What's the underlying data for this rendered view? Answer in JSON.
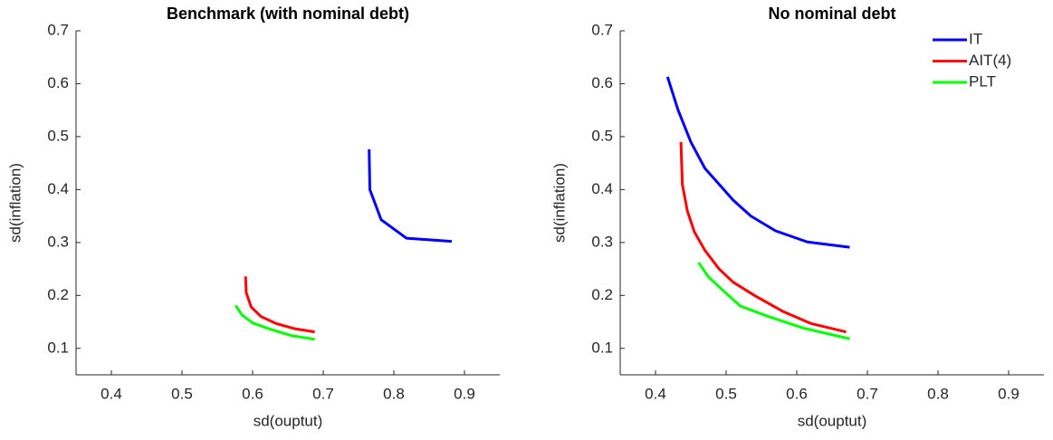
{
  "chart_data": [
    {
      "type": "line",
      "title": "Benchmark (with nominal debt)",
      "x_label": "sd(ouptut)",
      "y_label": "sd(inflation)",
      "xlim": [
        0.35,
        0.95
      ],
      "ylim": [
        0.05,
        0.7
      ],
      "xticks": [
        0.4,
        0.5,
        0.6,
        0.7,
        0.8,
        0.9
      ],
      "yticks": [
        0.1,
        0.2,
        0.3,
        0.4,
        0.5,
        0.6,
        0.7
      ],
      "series": [
        {
          "color": "#0000ff",
          "x": [
            0.765,
            0.766,
            0.782,
            0.818,
            0.882
          ],
          "values": [
            0.476,
            0.4,
            0.343,
            0.308,
            0.302
          ]
        },
        {
          "color": "#ff0000",
          "x": [
            0.59,
            0.591,
            0.598,
            0.612,
            0.633,
            0.66,
            0.688
          ],
          "values": [
            0.236,
            0.205,
            0.178,
            0.16,
            0.147,
            0.137,
            0.131
          ]
        },
        {
          "color": "#00ff00",
          "x": [
            0.576,
            0.585,
            0.6,
            0.625,
            0.655,
            0.688
          ],
          "values": [
            0.181,
            0.163,
            0.148,
            0.136,
            0.124,
            0.117
          ]
        }
      ]
    },
    {
      "type": "line",
      "title": "No nominal debt",
      "x_label": "sd(ouptut)",
      "y_label": "sd(inflation)",
      "xlim": [
        0.35,
        0.95
      ],
      "ylim": [
        0.05,
        0.7
      ],
      "xticks": [
        0.4,
        0.5,
        0.6,
        0.7,
        0.8,
        0.9
      ],
      "yticks": [
        0.1,
        0.2,
        0.3,
        0.4,
        0.5,
        0.6,
        0.7
      ],
      "legend": "northeast",
      "series": [
        {
          "name": "IT",
          "color": "#0000ff",
          "x": [
            0.417,
            0.432,
            0.45,
            0.47,
            0.49,
            0.51,
            0.535,
            0.57,
            0.615,
            0.675
          ],
          "values": [
            0.613,
            0.55,
            0.49,
            0.44,
            0.41,
            0.38,
            0.35,
            0.322,
            0.301,
            0.291
          ]
        },
        {
          "name": "AIT(4)",
          "color": "#ff0000",
          "x": [
            0.436,
            0.438,
            0.445,
            0.455,
            0.47,
            0.49,
            0.51,
            0.54,
            0.58,
            0.62,
            0.67
          ],
          "values": [
            0.49,
            0.41,
            0.36,
            0.32,
            0.285,
            0.25,
            0.225,
            0.2,
            0.17,
            0.147,
            0.131
          ]
        },
        {
          "name": "PLT",
          "color": "#00ff00",
          "x": [
            0.461,
            0.475,
            0.495,
            0.52,
            0.56,
            0.61,
            0.675
          ],
          "values": [
            0.262,
            0.235,
            0.21,
            0.18,
            0.16,
            0.138,
            0.118
          ]
        }
      ]
    }
  ]
}
